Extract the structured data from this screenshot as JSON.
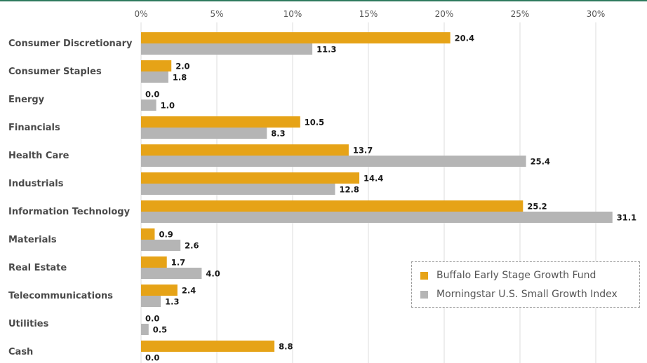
{
  "chart_data": {
    "type": "bar",
    "orientation": "horizontal",
    "categories": [
      "Consumer Discretionary",
      "Consumer Staples",
      "Energy",
      "Financials",
      "Health Care",
      "Industrials",
      "Information Technology",
      "Materials",
      "Real Estate",
      "Telecommunications",
      "Utilities",
      "Cash"
    ],
    "series": [
      {
        "name": "Buffalo Early Stage Growth Fund",
        "color": "#E6A317",
        "values": [
          20.4,
          2.0,
          0.0,
          10.5,
          13.7,
          14.4,
          25.2,
          0.9,
          1.7,
          2.4,
          0.0,
          8.8
        ],
        "labels": [
          "20.4",
          "2.0",
          "0.0",
          "10.5",
          "13.7",
          "14.4",
          "25.2",
          "0.9",
          "1.7",
          "2.4",
          "0.0",
          "8.8"
        ]
      },
      {
        "name": "Morningstar U.S. Small Growth Index",
        "color": "#B5B5B5",
        "values": [
          11.3,
          1.8,
          1.0,
          8.3,
          25.4,
          12.8,
          31.1,
          2.6,
          4.0,
          1.3,
          0.5,
          0.0
        ],
        "labels": [
          "11.3",
          "1.8",
          "1.0",
          "8.3",
          "25.4",
          "12.8",
          "31.1",
          "2.6",
          "4.0",
          "1.3",
          "0.5",
          "0.0"
        ]
      }
    ],
    "xticks": [
      0,
      5,
      10,
      15,
      20,
      25,
      30
    ],
    "xtick_labels": [
      "0%",
      "5%",
      "10%",
      "15%",
      "20%",
      "25%",
      "30%"
    ],
    "xlim": [
      0,
      32
    ],
    "axis_position": "top",
    "grid": true,
    "legend_position": "bottom-right"
  },
  "colors": {
    "gridline": "#dddddd",
    "top_rule": "#2e7a5e"
  }
}
